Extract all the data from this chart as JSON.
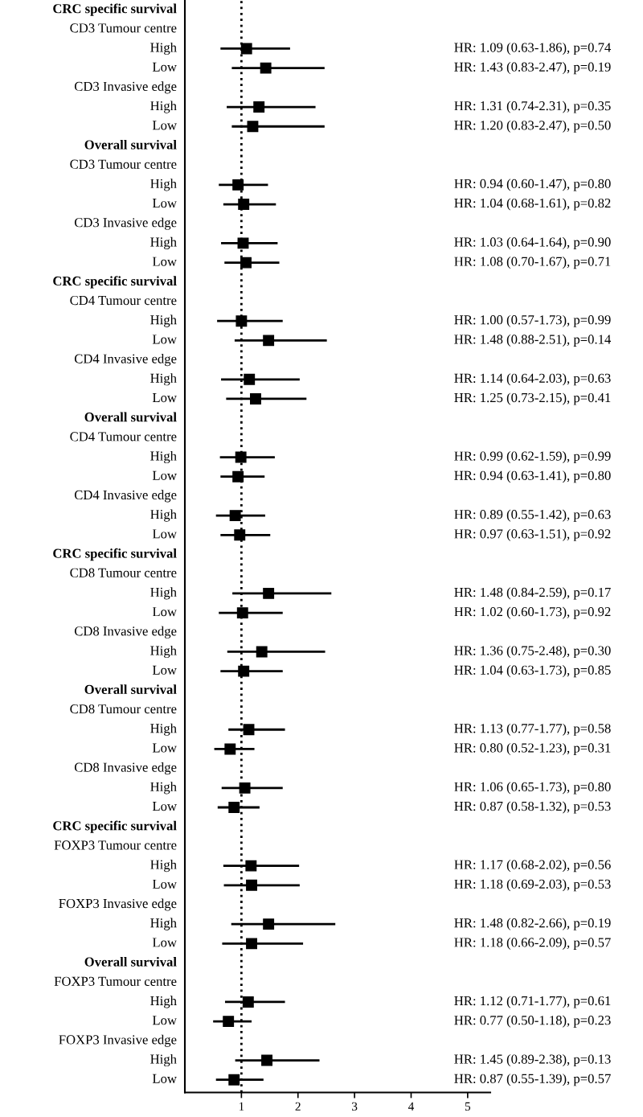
{
  "chart_data": {
    "type": "scatter",
    "orientation": "horizontal",
    "color": "#000000",
    "marker": "square",
    "grid": false,
    "legend": false,
    "xlim": [
      0,
      5.4
    ],
    "xticks": [
      1,
      2,
      3,
      4,
      5
    ],
    "ref_lines": [
      {
        "axis": "x",
        "value": 1,
        "line_style": "dotted",
        "color": "#000000"
      }
    ],
    "categories": [
      "CRC specific survival",
      "CD3 Tumour centre",
      "High",
      "Low",
      "CD3 Invasive edge",
      "High",
      "Low",
      "Overall survival",
      "CD3 Tumour centre",
      "High",
      "Low",
      "CD3 Invasive edge",
      "High",
      "Low",
      "CRC specific survival",
      "CD4 Tumour centre",
      "High",
      "Low",
      "CD4 Invasive edge",
      "High",
      "Low",
      "Overall survival",
      "CD4 Tumour centre",
      "High",
      "Low",
      "CD4 Invasive edge",
      "High",
      "Low",
      "CRC specific survival",
      "CD8 Tumour centre",
      "High",
      "Low",
      "CD8 Invasive edge",
      "High",
      "Low",
      "Overall survival",
      "CD8 Tumour centre",
      "High",
      "Low",
      "CD8 Invasive edge",
      "High",
      "Low",
      "CRC specific survival",
      "FOXP3 Tumour centre",
      "High",
      "Low",
      "FOXP3 Invasive edge",
      "High",
      "Low",
      "Overall survival",
      "FOXP3 Tumour centre",
      "High",
      "Low",
      "FOXP3 Invasive edge",
      "High",
      "Low"
    ],
    "values": [
      null,
      null,
      1.09,
      1.43,
      null,
      1.31,
      1.2,
      null,
      null,
      0.94,
      1.04,
      null,
      1.03,
      1.08,
      null,
      null,
      1.0,
      1.48,
      null,
      1.14,
      1.25,
      null,
      null,
      0.99,
      0.94,
      null,
      0.89,
      0.97,
      null,
      null,
      1.48,
      1.02,
      null,
      1.36,
      1.04,
      null,
      null,
      1.13,
      0.8,
      null,
      1.06,
      0.87,
      null,
      null,
      1.17,
      1.18,
      null,
      1.48,
      1.18,
      null,
      null,
      1.12,
      0.77,
      null,
      1.45,
      0.87
    ],
    "errors": [
      null,
      null,
      [
        0.63,
        1.86
      ],
      [
        0.83,
        2.47
      ],
      null,
      [
        0.74,
        2.31
      ],
      [
        0.83,
        2.47
      ],
      null,
      null,
      [
        0.6,
        1.47
      ],
      [
        0.68,
        1.61
      ],
      null,
      [
        0.64,
        1.64
      ],
      [
        0.7,
        1.67
      ],
      null,
      null,
      [
        0.57,
        1.73
      ],
      [
        0.88,
        2.51
      ],
      null,
      [
        0.64,
        2.03
      ],
      [
        0.73,
        2.15
      ],
      null,
      null,
      [
        0.62,
        1.59
      ],
      [
        0.63,
        1.41
      ],
      null,
      [
        0.55,
        1.42
      ],
      [
        0.63,
        1.51
      ],
      null,
      null,
      [
        0.84,
        2.59
      ],
      [
        0.6,
        1.73
      ],
      null,
      [
        0.75,
        2.48
      ],
      [
        0.63,
        1.73
      ],
      null,
      null,
      [
        0.77,
        1.77
      ],
      [
        0.52,
        1.23
      ],
      null,
      [
        0.65,
        1.73
      ],
      [
        0.58,
        1.32
      ],
      null,
      null,
      [
        0.68,
        2.02
      ],
      [
        0.69,
        2.03
      ],
      null,
      [
        0.82,
        2.66
      ],
      [
        0.66,
        2.09
      ],
      null,
      null,
      [
        0.71,
        1.77
      ],
      [
        0.5,
        1.18
      ],
      null,
      [
        0.89,
        2.38
      ],
      [
        0.55,
        1.39
      ]
    ],
    "value_labels": [
      null,
      null,
      "HR: 1.09 (0.63-1.86), p=0.74",
      "HR: 1.43 (0.83-2.47), p=0.19",
      null,
      "HR: 1.31 (0.74-2.31), p=0.35",
      "HR: 1.20 (0.83-2.47), p=0.50",
      null,
      null,
      "HR: 0.94 (0.60-1.47), p=0.80",
      "HR: 1.04 (0.68-1.61), p=0.82",
      null,
      "HR: 1.03 (0.64-1.64), p=0.90",
      "HR: 1.08 (0.70-1.67), p=0.71",
      null,
      null,
      "HR: 1.00 (0.57-1.73), p=0.99",
      "HR: 1.48 (0.88-2.51), p=0.14",
      null,
      "HR: 1.14 (0.64-2.03), p=0.63",
      "HR: 1.25 (0.73-2.15), p=0.41",
      null,
      null,
      "HR: 0.99 (0.62-1.59), p=0.99",
      "HR: 0.94 (0.63-1.41), p=0.80",
      null,
      "HR: 0.89 (0.55-1.42), p=0.63",
      "HR: 0.97 (0.63-1.51), p=0.92",
      null,
      null,
      "HR: 1.48 (0.84-2.59), p=0.17",
      "HR: 1.02 (0.60-1.73), p=0.92",
      null,
      "HR: 1.36 (0.75-2.48), p=0.30",
      "HR: 1.04 (0.63-1.73), p=0.85",
      null,
      null,
      "HR: 1.13 (0.77-1.77), p=0.58",
      "HR: 0.80 (0.52-1.23), p=0.31",
      null,
      "HR: 1.06 (0.65-1.73), p=0.80",
      "HR: 0.87 (0.58-1.32), p=0.53",
      null,
      null,
      "HR: 1.17 (0.68-2.02), p=0.56",
      "HR: 1.18 (0.69-2.03), p=0.53",
      null,
      "HR: 1.48 (0.82-2.66), p=0.19",
      "HR: 1.18 (0.66-2.09), p=0.57",
      null,
      null,
      "HR: 1.12 (0.71-1.77), p=0.61",
      "HR: 0.77 (0.50-1.18), p=0.23",
      null,
      "HR: 1.45 (0.89-2.38), p=0.13",
      "HR: 0.87 (0.55-1.39), p=0.57"
    ]
  }
}
